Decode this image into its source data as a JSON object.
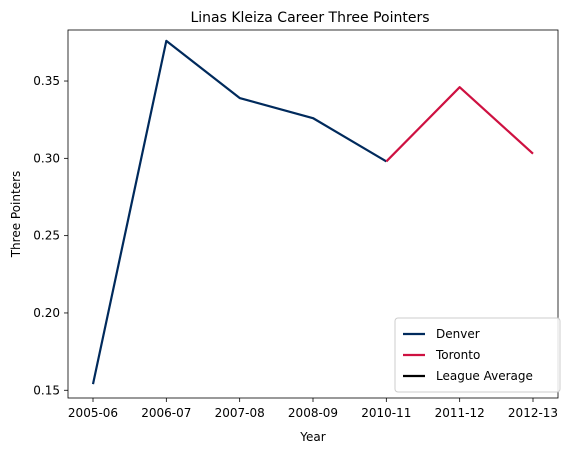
{
  "chart_data": {
    "type": "line",
    "title": "Linas Kleiza Career Three Pointers",
    "xlabel": "Year",
    "ylabel": "Three Pointers",
    "categories": [
      "2005-06",
      "2006-07",
      "2007-08",
      "2008-09",
      "2010-11",
      "2011-12",
      "2012-13"
    ],
    "ylim": [
      0.145,
      0.383
    ],
    "yticks": [
      "0.15",
      "0.20",
      "0.25",
      "0.30",
      "0.35"
    ],
    "ytick_values": [
      0.15,
      0.2,
      0.25,
      0.3,
      0.35
    ],
    "grid": false,
    "legend_position": "lower-right",
    "series": [
      {
        "name": "Denver",
        "color": "#002a5c",
        "points": [
          [
            0,
            0.154
          ],
          [
            1,
            0.376
          ],
          [
            2,
            0.339
          ],
          [
            3,
            0.326
          ],
          [
            4,
            0.298
          ]
        ]
      },
      {
        "name": "Toronto",
        "color": "#ce1141",
        "points": [
          [
            4,
            0.298
          ],
          [
            5,
            0.346
          ],
          [
            6,
            0.303
          ]
        ]
      },
      {
        "name": "League Average",
        "color": "#000000",
        "points": []
      }
    ]
  }
}
